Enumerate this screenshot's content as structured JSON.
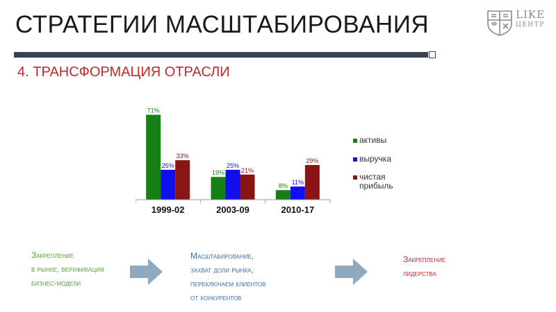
{
  "header": {
    "title": "СТРАТЕГИИ МАСШТАБИРОВАНИЯ",
    "subtitle": "4. ТРАНСФОРМАЦИЯ ОТРАСЛИ"
  },
  "logo": {
    "line1": "LIKE",
    "line2": "ЦЕНТР",
    "color": "#8a8a8a"
  },
  "chart_data": {
    "type": "bar",
    "title": "",
    "xlabel": "",
    "ylabel": "",
    "categories": [
      "1999-02",
      "2003-09",
      "2010-17"
    ],
    "series": [
      {
        "name": "активы",
        "values": [
          71,
          19,
          8
        ],
        "labels": [
          "71%",
          "19%",
          "8%"
        ],
        "color": "#168016"
      },
      {
        "name": "выручка",
        "values": [
          25,
          25,
          11
        ],
        "labels": [
          "25%",
          "25%",
          "11%"
        ],
        "color": "#1010ee"
      },
      {
        "name": "чистая прибыль",
        "values": [
          33,
          21,
          29
        ],
        "labels": [
          "33%",
          "21%",
          "29%"
        ],
        "color": "#8b1414"
      }
    ],
    "ylim": [
      0,
      80
    ],
    "grid": false,
    "legend": "right"
  },
  "stages": [
    {
      "lines": [
        "Закрепление",
        "в рынке, верификация",
        "бизнес-модели"
      ],
      "color": "#5aa02c"
    },
    {
      "lines": [
        "Масштабирование,",
        "захват доли рынка,",
        "переключаем клиентов",
        "от конкурентов"
      ],
      "color": "#3b6fa8"
    },
    {
      "lines": [
        "Закрепление",
        "лидерства"
      ],
      "color": "#c0282d"
    }
  ],
  "arrows": {
    "color": "#8fa9bf",
    "icon": "right-arrow-icon"
  }
}
